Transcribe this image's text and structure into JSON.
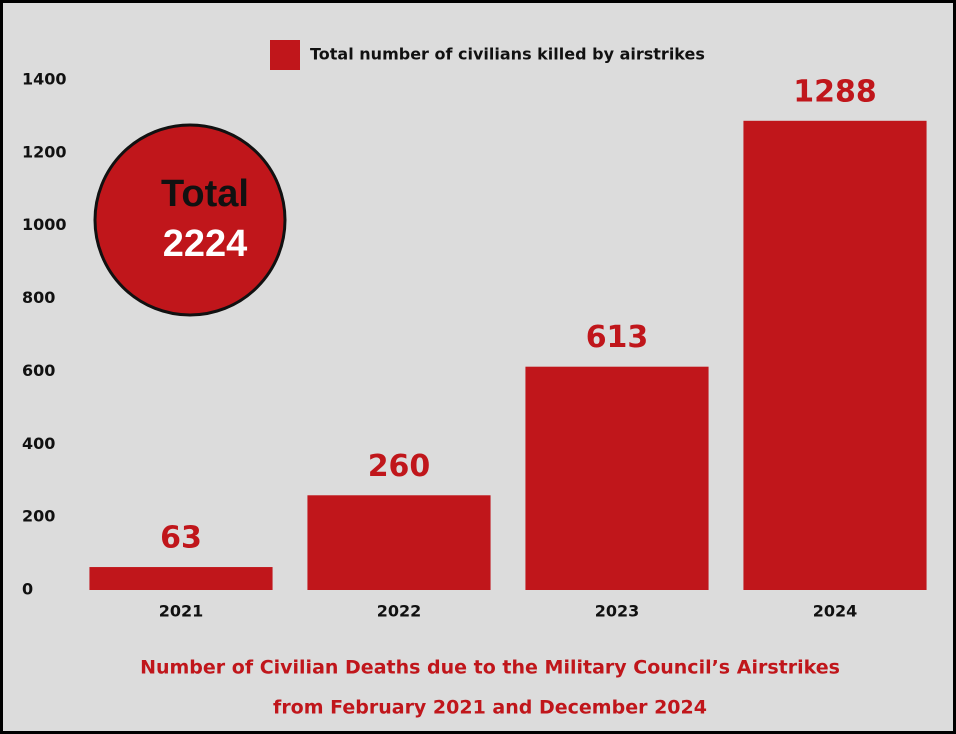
{
  "chart_data": {
    "type": "bar",
    "title": "Number of Civilian Deaths due to the Military Council’s Airstrikes",
    "subtitle": "from February 2021 and December 2024",
    "categories": [
      "2021",
      "2022",
      "2023",
      "2024"
    ],
    "series": [
      {
        "name": "Total number of civilians killed by airstrikes",
        "color": "#c0161b",
        "values": [
          63,
          260,
          613,
          1288
        ]
      }
    ],
    "ylim": [
      0,
      1400
    ],
    "yticks": [
      0,
      200,
      400,
      600,
      800,
      1000,
      1200,
      1400
    ],
    "total": {
      "label": "Total",
      "value": 2224
    }
  }
}
